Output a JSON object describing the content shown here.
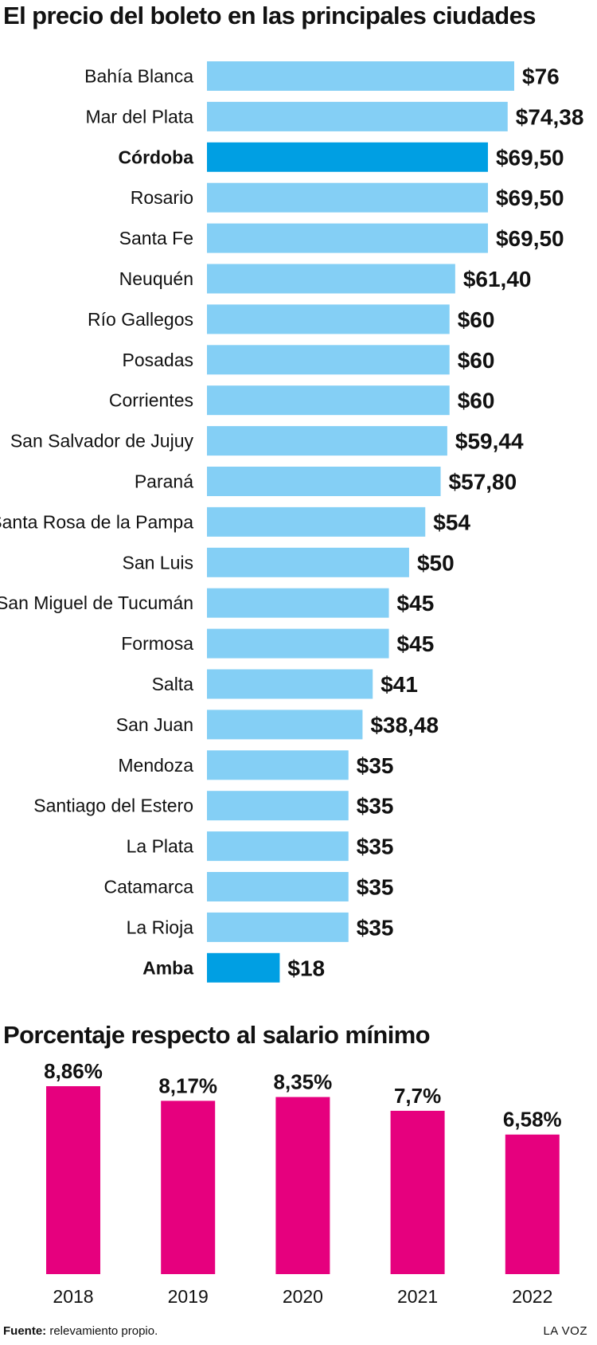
{
  "colors": {
    "bar": "#84cff5",
    "bar_highlight": "#009fe3",
    "column": "#e6007e",
    "text": "#111111"
  },
  "chart_data": [
    {
      "type": "bar",
      "orientation": "horizontal",
      "title": "El precio del boleto en las principales ciudades",
      "categories": [
        "Bahía Blanca",
        "Mar del Plata",
        "Córdoba",
        "Rosario",
        "Santa Fe",
        "Neuquén",
        "Río Gallegos",
        "Posadas",
        "Corrientes",
        "San Salvador de Jujuy",
        "Paraná",
        "Santa Rosa de la Pampa",
        "San Luis",
        "San Miguel de Tucumán",
        "Formosa",
        "Salta",
        "San Juan",
        "Mendoza",
        "Santiago del Estero",
        "La Plata",
        "Catamarca",
        "La Rioja",
        "Amba"
      ],
      "values": [
        76,
        74.38,
        69.5,
        69.5,
        69.5,
        61.4,
        60,
        60,
        60,
        59.44,
        57.8,
        54,
        50,
        45,
        45,
        41,
        38.48,
        35,
        35,
        35,
        35,
        35,
        18
      ],
      "value_labels": [
        "$76",
        "$74,38",
        "$69,50",
        "$69,50",
        "$69,50",
        "$61,40",
        "$60",
        "$60",
        "$60",
        "$59,44",
        "$57,80",
        "$54",
        "$50",
        "$45",
        "$45",
        "$41",
        "$38,48",
        "$35",
        "$35",
        "$35",
        "$35",
        "$35",
        "$18"
      ],
      "highlighted": [
        "Córdoba",
        "Amba"
      ],
      "grid": false,
      "legend": "none"
    },
    {
      "type": "bar",
      "orientation": "vertical",
      "title": "Porcentaje respecto al salario mínimo",
      "categories": [
        "2018",
        "2019",
        "2020",
        "2021",
        "2022"
      ],
      "values": [
        8.86,
        8.17,
        8.35,
        7.7,
        6.58
      ],
      "value_labels": [
        "8,86%",
        "8,17%",
        "8,35%",
        "7,7%",
        "6,58%"
      ],
      "grid": false,
      "legend": "none"
    }
  ],
  "footer": {
    "source_label": "Fuente:",
    "source_text": " relevamiento propio.",
    "brand": "LA VOZ"
  }
}
